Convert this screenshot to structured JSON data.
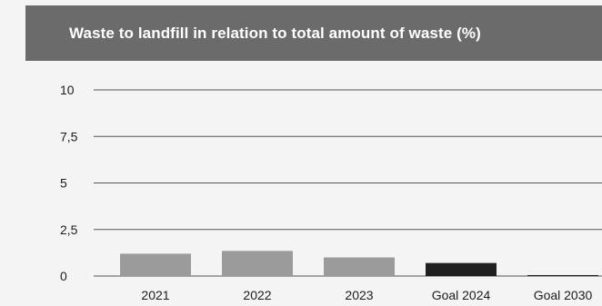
{
  "chart_data": {
    "type": "bar",
    "title": "Waste to landfill in relation to total amount of waste (%)",
    "xlabel": "",
    "ylabel": "",
    "categories": [
      "2021",
      "2022",
      "2023",
      "Goal 2024",
      "Goal 2030"
    ],
    "values": [
      1.2,
      1.35,
      1.0,
      0.7,
      0.05
    ],
    "bar_colors": [
      "#9b9b9b",
      "#9b9b9b",
      "#9b9b9b",
      "#1f1f1f",
      "#1f1f1f"
    ],
    "ylim": [
      0,
      10
    ],
    "yticks": [
      0,
      2.5,
      5,
      7.5,
      10
    ],
    "ytick_labels": [
      "0",
      "2,5",
      "5",
      "7,5",
      "10"
    ],
    "grid": true,
    "legend": "none"
  },
  "colors": {
    "title_bar": "#6b6b6b",
    "background": "#f4f4f4",
    "gridline": "#555555"
  }
}
